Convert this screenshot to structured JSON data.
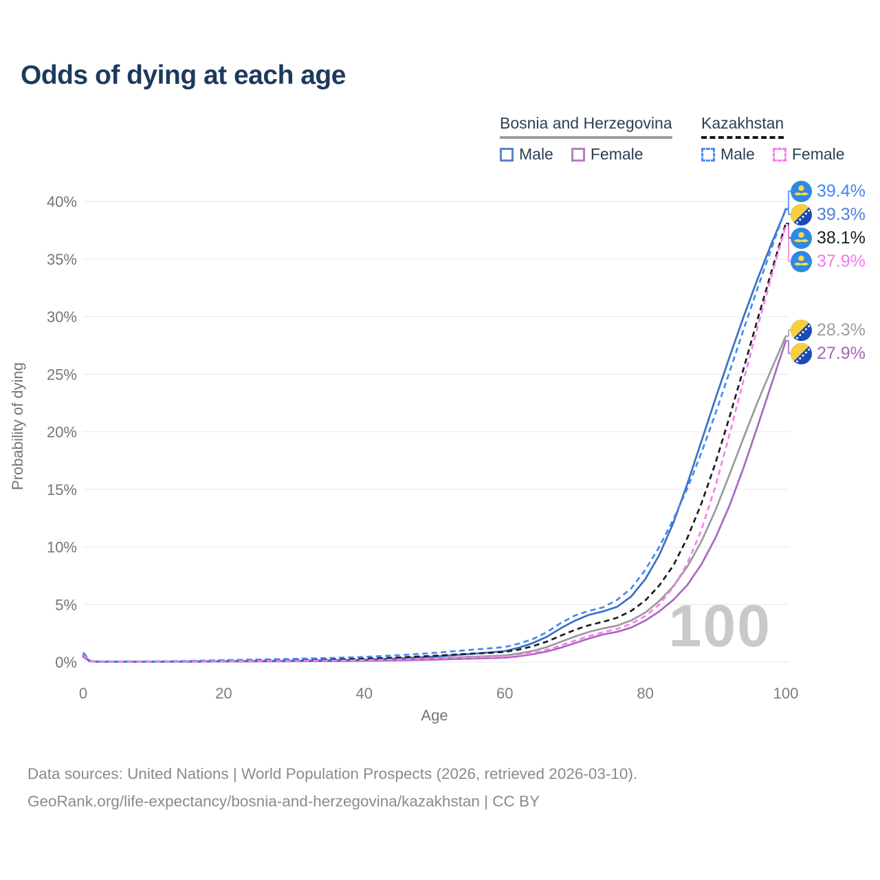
{
  "title": "Odds of dying at each age",
  "legend": {
    "groups": [
      {
        "country": "Bosnia and Herzegovina",
        "line_style": "solid",
        "underline_color": "#9e9e9e",
        "items": [
          {
            "label": "Male",
            "color": "#5b84c8",
            "dashed": false
          },
          {
            "label": "Female",
            "color": "#b87cc2",
            "dashed": false
          }
        ]
      },
      {
        "country": "Kazakhstan",
        "line_style": "dashed",
        "underline_color": "#141414",
        "items": [
          {
            "label": "Male",
            "color": "#4d8df5",
            "dashed": true
          },
          {
            "label": "Female",
            "color": "#fb7cf0",
            "dashed": true
          }
        ]
      }
    ]
  },
  "chart_data": {
    "type": "line",
    "title": "Odds of dying at each age",
    "xlabel": "Age",
    "ylabel": "Probability of dying",
    "xlim": [
      0,
      100
    ],
    "ylim_pct": [
      0,
      40
    ],
    "grid": "horizontal",
    "watermark": "100",
    "x_ticks": [
      {
        "v": 0,
        "label": "0"
      },
      {
        "v": 20,
        "label": "20"
      },
      {
        "v": 40,
        "label": "40"
      },
      {
        "v": 60,
        "label": "60"
      },
      {
        "v": 80,
        "label": "80"
      },
      {
        "v": 100,
        "label": "100"
      }
    ],
    "y_ticks": [
      {
        "v": 0,
        "label": "0%"
      },
      {
        "v": 5,
        "label": "5%"
      },
      {
        "v": 10,
        "label": "10%"
      },
      {
        "v": 15,
        "label": "15%"
      },
      {
        "v": 20,
        "label": "20%"
      },
      {
        "v": 25,
        "label": "25%"
      },
      {
        "v": 30,
        "label": "30%"
      },
      {
        "v": 35,
        "label": "35%"
      },
      {
        "v": 40,
        "label": "40%"
      }
    ],
    "x": [
      0,
      1,
      2,
      5,
      10,
      15,
      20,
      25,
      30,
      35,
      40,
      45,
      50,
      55,
      58,
      60,
      62,
      64,
      66,
      68,
      70,
      72,
      74,
      76,
      78,
      80,
      82,
      84,
      86,
      88,
      90,
      92,
      94,
      96,
      98,
      100
    ],
    "series": [
      {
        "name": "bosnia-all",
        "country": "Bosnia and Herzegovina",
        "sex": "all",
        "color": "#9a9a9a",
        "dashed": false,
        "values": [
          0.5,
          0.05,
          0.03,
          0.03,
          0.03,
          0.04,
          0.06,
          0.07,
          0.08,
          0.11,
          0.15,
          0.22,
          0.33,
          0.46,
          0.52,
          0.58,
          0.74,
          0.97,
          1.3,
          1.76,
          2.22,
          2.62,
          2.92,
          3.17,
          3.62,
          4.3,
          5.3,
          6.6,
          8.3,
          10.5,
          13.2,
          16.3,
          19.5,
          22.6,
          25.5,
          28.3
        ]
      },
      {
        "name": "bosnia-female",
        "country": "Bosnia and Herzegovina",
        "sex": "female",
        "color": "#a868bd",
        "dashed": false,
        "values": [
          0.45,
          0.05,
          0.03,
          0.02,
          0.02,
          0.03,
          0.05,
          0.06,
          0.07,
          0.08,
          0.11,
          0.15,
          0.21,
          0.3,
          0.34,
          0.38,
          0.5,
          0.68,
          0.92,
          1.25,
          1.65,
          2.05,
          2.4,
          2.62,
          3.0,
          3.6,
          4.4,
          5.4,
          6.7,
          8.5,
          10.8,
          13.6,
          16.9,
          20.5,
          24.2,
          27.9
        ]
      },
      {
        "name": "bosnia-male",
        "country": "Bosnia and Herzegovina",
        "sex": "male",
        "color": "#3a6fc4",
        "dashed": false,
        "values": [
          0.55,
          0.06,
          0.04,
          0.03,
          0.03,
          0.05,
          0.08,
          0.09,
          0.11,
          0.15,
          0.21,
          0.32,
          0.48,
          0.7,
          0.85,
          0.95,
          1.25,
          1.65,
          2.2,
          2.95,
          3.6,
          4.1,
          4.4,
          4.8,
          5.7,
          7.2,
          9.3,
          12.1,
          15.5,
          19.2,
          22.9,
          26.5,
          30.0,
          33.3,
          36.4,
          39.3
        ]
      },
      {
        "name": "kazakhstan-all",
        "country": "Kazakhstan",
        "sex": "all",
        "color": "#1c1c1c",
        "dashed": true,
        "values": [
          0.7,
          0.07,
          0.05,
          0.04,
          0.05,
          0.08,
          0.12,
          0.15,
          0.18,
          0.23,
          0.3,
          0.4,
          0.55,
          0.72,
          0.8,
          0.88,
          1.08,
          1.38,
          1.78,
          2.3,
          2.8,
          3.2,
          3.5,
          3.85,
          4.45,
          5.35,
          6.65,
          8.4,
          10.8,
          13.8,
          17.3,
          21.3,
          25.5,
          29.8,
          34.0,
          38.1
        ]
      },
      {
        "name": "kazakhstan-male",
        "country": "Kazakhstan",
        "sex": "male",
        "color": "#4688f2",
        "dashed": true,
        "values": [
          0.85,
          0.09,
          0.06,
          0.05,
          0.06,
          0.1,
          0.17,
          0.22,
          0.28,
          0.35,
          0.45,
          0.6,
          0.8,
          1.05,
          1.2,
          1.3,
          1.6,
          2.0,
          2.6,
          3.4,
          4.05,
          4.45,
          4.75,
          5.4,
          6.4,
          8.0,
          10.0,
          12.4,
          15.1,
          18.2,
          21.6,
          25.2,
          28.9,
          32.5,
          36.0,
          39.4
        ]
      },
      {
        "name": "kazakhstan-female",
        "country": "Kazakhstan",
        "sex": "female",
        "color": "#f97df0",
        "dashed": true,
        "values": [
          0.6,
          0.06,
          0.04,
          0.03,
          0.04,
          0.06,
          0.08,
          0.09,
          0.11,
          0.13,
          0.17,
          0.23,
          0.31,
          0.4,
          0.43,
          0.46,
          0.59,
          0.79,
          1.06,
          1.45,
          1.86,
          2.26,
          2.6,
          2.87,
          3.32,
          4.0,
          5.0,
          6.5,
          8.6,
          11.5,
          15.3,
          19.8,
          24.5,
          29.1,
          33.6,
          37.9
        ]
      }
    ],
    "end_labels": [
      {
        "text": "39.4%",
        "value": 39.4,
        "color": "#4285f4",
        "flag": "kz",
        "series": "kazakhstan-male"
      },
      {
        "text": "39.3%",
        "value": 39.3,
        "color": "#4e80d8",
        "flag": "ba",
        "series": "bosnia-male"
      },
      {
        "text": "38.1%",
        "value": 38.1,
        "color": "#1f1f1f",
        "flag": "kz",
        "series": "kazakhstan-all"
      },
      {
        "text": "37.9%",
        "value": 37.9,
        "color": "#f678ee",
        "flag": "kz",
        "series": "kazakhstan-female"
      },
      {
        "text": "28.3%",
        "value": 28.3,
        "color": "#9e9e9e",
        "flag": "ba",
        "series": "bosnia-all"
      },
      {
        "text": "27.9%",
        "value": 27.9,
        "color": "#a465bb",
        "flag": "ba",
        "series": "bosnia-female"
      }
    ]
  },
  "flag_colors": {
    "kz_blue": "#2e8ae0",
    "kz_yellow": "#fcd84a",
    "ba_blue": "#1c4bb4",
    "ba_yellow": "#f7ce3c",
    "ba_star": "#ffffff"
  },
  "footer": {
    "line1": "Data sources: United Nations | World Population Prospects (2026, retrieved 2026-03-10).",
    "line2": "GeoRank.org/life-expectancy/bosnia-and-herzegovina/kazakhstan | CC BY"
  }
}
